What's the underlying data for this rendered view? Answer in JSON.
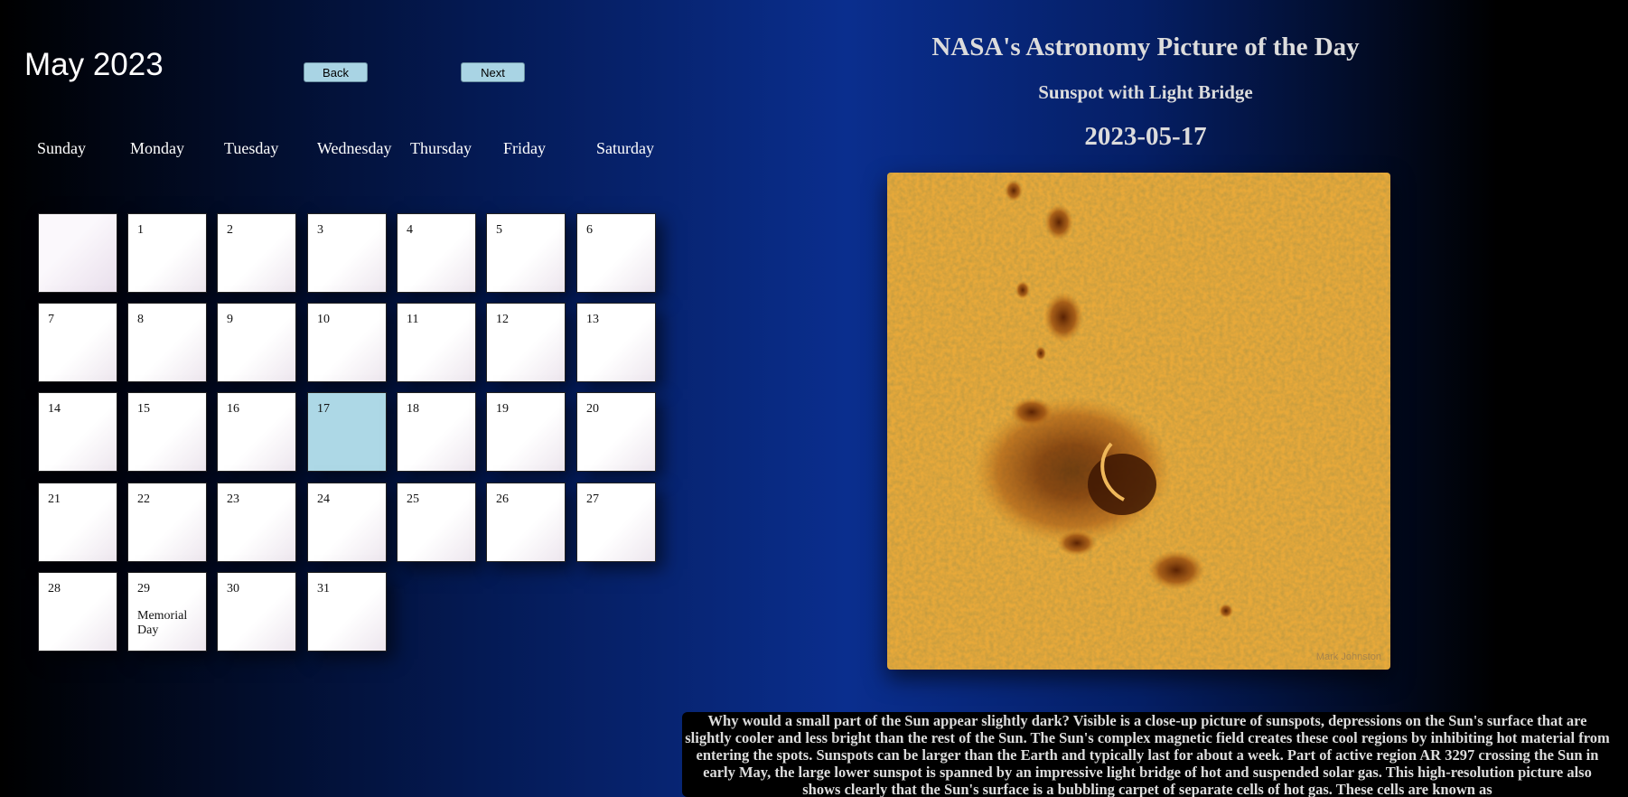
{
  "calendar": {
    "title": "May 2023",
    "back_label": "Back",
    "next_label": "Next",
    "weekdays": [
      "Sunday",
      "Monday",
      "Tuesday",
      "Wednesday",
      "Thursday",
      "Friday",
      "Saturday"
    ],
    "days": [
      {
        "n": "",
        "holiday": ""
      },
      {
        "n": "1",
        "holiday": ""
      },
      {
        "n": "2",
        "holiday": ""
      },
      {
        "n": "3",
        "holiday": ""
      },
      {
        "n": "4",
        "holiday": ""
      },
      {
        "n": "5",
        "holiday": ""
      },
      {
        "n": "6",
        "holiday": ""
      },
      {
        "n": "7",
        "holiday": ""
      },
      {
        "n": "8",
        "holiday": ""
      },
      {
        "n": "9",
        "holiday": ""
      },
      {
        "n": "10",
        "holiday": ""
      },
      {
        "n": "11",
        "holiday": ""
      },
      {
        "n": "12",
        "holiday": ""
      },
      {
        "n": "13",
        "holiday": ""
      },
      {
        "n": "14",
        "holiday": ""
      },
      {
        "n": "15",
        "holiday": ""
      },
      {
        "n": "16",
        "holiday": ""
      },
      {
        "n": "17",
        "holiday": "",
        "selected": true
      },
      {
        "n": "18",
        "holiday": ""
      },
      {
        "n": "19",
        "holiday": ""
      },
      {
        "n": "20",
        "holiday": ""
      },
      {
        "n": "21",
        "holiday": ""
      },
      {
        "n": "22",
        "holiday": ""
      },
      {
        "n": "23",
        "holiday": ""
      },
      {
        "n": "24",
        "holiday": ""
      },
      {
        "n": "25",
        "holiday": ""
      },
      {
        "n": "26",
        "holiday": ""
      },
      {
        "n": "27",
        "holiday": ""
      },
      {
        "n": "28",
        "holiday": ""
      },
      {
        "n": "29",
        "holiday": "Memorial Day"
      },
      {
        "n": "30",
        "holiday": ""
      },
      {
        "n": "31",
        "holiday": ""
      }
    ]
  },
  "apod": {
    "header": "NASA's Astronomy Picture of the Day",
    "title": "Sunspot with Light Bridge",
    "date": "2023-05-17",
    "image_credit": "Mark Johnston",
    "explanation": "Why would a small part of the Sun appear slightly dark? Visible is a close-up picture of sunspots, depressions on the Sun's surface that are slightly cooler and less bright than the rest of the Sun. The Sun's complex magnetic field creates these cool regions by inhibiting hot material from entering the spots. Sunspots can be larger than the Earth and typically last for about a week. Part of active region AR 3297 crossing the Sun in early May, the large lower sunspot is spanned by an impressive light bridge of hot and suspended solar gas. This high-resolution picture also shows clearly that the Sun's surface is a bubbling carpet of separate cells of hot gas. These cells are known as"
  },
  "colors": {
    "selected_day": "#add8e6",
    "button": "#a9d4e4",
    "sun_surface": "#e8a93a"
  }
}
